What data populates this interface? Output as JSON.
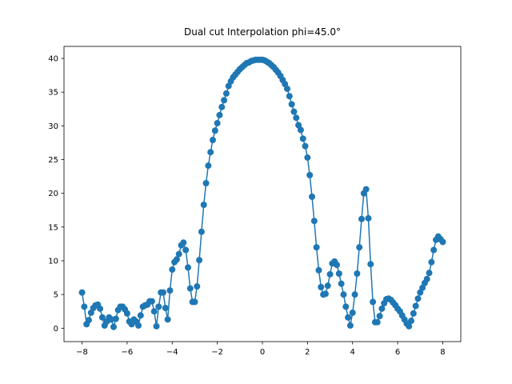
{
  "chart_data": {
    "type": "line",
    "title": "Dual cut Interpolation phi=45.0°",
    "x": [
      -8.0,
      -7.9,
      -7.8,
      -7.7,
      -7.6,
      -7.5,
      -7.4,
      -7.3,
      -7.2,
      -7.1,
      -7.0,
      -6.9,
      -6.8,
      -6.7,
      -6.6,
      -6.5,
      -6.4,
      -6.3,
      -6.2,
      -6.1,
      -6.0,
      -5.9,
      -5.8,
      -5.7,
      -5.6,
      -5.5,
      -5.4,
      -5.3,
      -5.2,
      -5.1,
      -5.0,
      -4.9,
      -4.8,
      -4.7,
      -4.6,
      -4.5,
      -4.4,
      -4.3,
      -4.2,
      -4.1,
      -4.0,
      -3.9,
      -3.8,
      -3.7,
      -3.6,
      -3.5,
      -3.4,
      -3.3,
      -3.2,
      -3.1,
      -3.0,
      -2.9,
      -2.8,
      -2.7,
      -2.6,
      -2.5,
      -2.4,
      -2.3,
      -2.2,
      -2.1,
      -2.0,
      -1.9,
      -1.8,
      -1.7,
      -1.6,
      -1.5,
      -1.4,
      -1.3,
      -1.2,
      -1.1,
      -1.0,
      -0.9,
      -0.8,
      -0.7,
      -0.6,
      -0.5,
      -0.4,
      -0.3,
      -0.2,
      -0.1,
      0.0,
      0.1,
      0.2,
      0.3,
      0.4,
      0.5,
      0.6,
      0.7,
      0.8,
      0.9,
      1.0,
      1.1,
      1.2,
      1.3,
      1.4,
      1.5,
      1.6,
      1.7,
      1.8,
      1.9,
      2.0,
      2.1,
      2.2,
      2.3,
      2.4,
      2.5,
      2.6,
      2.7,
      2.8,
      2.9,
      3.0,
      3.1,
      3.2,
      3.3,
      3.4,
      3.5,
      3.6,
      3.7,
      3.8,
      3.9,
      4.0,
      4.1,
      4.2,
      4.3,
      4.4,
      4.5,
      4.6,
      4.7,
      4.8,
      4.9,
      5.0,
      5.1,
      5.2,
      5.3,
      5.4,
      5.5,
      5.6,
      5.7,
      5.8,
      5.9,
      6.0,
      6.1,
      6.2,
      6.3,
      6.4,
      6.5,
      6.6,
      6.7,
      6.8,
      6.9,
      7.0,
      7.1,
      7.2,
      7.3,
      7.4,
      7.5,
      7.6,
      7.7,
      7.8,
      7.9,
      8.0
    ],
    "series": [
      {
        "color": "#1f77b4",
        "values": [
          5.3,
          3.2,
          0.6,
          1.2,
          2.3,
          3.0,
          3.4,
          3.5,
          2.9,
          1.6,
          0.4,
          1.0,
          1.6,
          1.3,
          0.2,
          1.4,
          2.7,
          3.2,
          3.2,
          2.8,
          2.2,
          1.0,
          0.6,
          1.3,
          1.0,
          0.4,
          1.9,
          3.2,
          3.4,
          3.5,
          4.0,
          4.0,
          2.5,
          0.3,
          3.2,
          5.3,
          5.3,
          3.0,
          1.3,
          5.6,
          8.7,
          9.8,
          10.2,
          11.0,
          12.3,
          12.7,
          11.6,
          9.0,
          5.9,
          3.9,
          3.9,
          6.2,
          10.1,
          14.3,
          18.3,
          21.5,
          24.1,
          26.1,
          27.9,
          29.3,
          30.4,
          31.6,
          32.8,
          33.8,
          34.8,
          35.9,
          36.6,
          37.2,
          37.6,
          38.0,
          38.4,
          38.7,
          39.0,
          39.3,
          39.4,
          39.6,
          39.7,
          39.8,
          39.8,
          39.8,
          39.8,
          39.7,
          39.5,
          39.3,
          39.0,
          38.7,
          38.3,
          37.9,
          37.4,
          36.8,
          36.2,
          35.5,
          34.4,
          33.2,
          32.1,
          31.2,
          30.1,
          29.4,
          28.1,
          27.0,
          25.3,
          22.7,
          19.5,
          15.9,
          12.0,
          8.6,
          6.1,
          5.0,
          5.1,
          6.3,
          8.0,
          9.6,
          9.9,
          9.4,
          8.1,
          6.6,
          5.0,
          3.2,
          1.6,
          0.4,
          2.3,
          5.0,
          8.1,
          12.0,
          16.2,
          20.0,
          20.6,
          16.3,
          9.5,
          3.9,
          0.9,
          0.9,
          1.8,
          2.9,
          3.7,
          4.3,
          4.4,
          4.2,
          3.8,
          3.4,
          2.9,
          2.5,
          1.9,
          1.3,
          0.7,
          0.3,
          1.1,
          2.2,
          3.3,
          4.4,
          5.3,
          6.0,
          6.7,
          7.3,
          8.2,
          9.8,
          11.6,
          13.1,
          13.6,
          13.2,
          12.8
        ]
      }
    ],
    "xlim": [
      -8.8,
      8.8
    ],
    "ylim": [
      -1.98,
      41.78
    ],
    "xticks": [
      {
        "value": -8,
        "label": "−8"
      },
      {
        "value": -6,
        "label": "−6"
      },
      {
        "value": -4,
        "label": "−4"
      },
      {
        "value": -2,
        "label": "−2"
      },
      0,
      2,
      4,
      6,
      8
    ],
    "yticks": [
      0,
      5,
      10,
      15,
      20,
      25,
      30,
      35,
      40
    ]
  }
}
